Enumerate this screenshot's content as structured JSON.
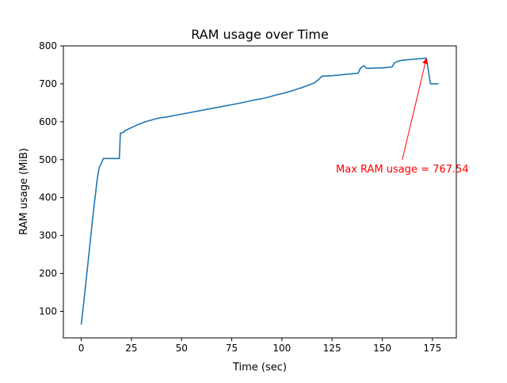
{
  "chart_data": {
    "type": "line",
    "title": "RAM usage over Time",
    "xlabel": "Time (sec)",
    "ylabel": "RAM usage (MiB)",
    "xlim": [
      -8.9,
      186.9
    ],
    "ylim": [
      30,
      800
    ],
    "xticks": [
      0,
      25,
      50,
      75,
      100,
      125,
      150,
      175
    ],
    "yticks": [
      100,
      200,
      300,
      400,
      500,
      600,
      700,
      800
    ],
    "grid": false,
    "line_color": "#1f77b4",
    "annotation_color": "#ff0000",
    "annotation": {
      "text": "Max RAM usage = 767.54",
      "point": [
        172,
        767.54
      ],
      "text_anchor_point": [
        160,
        500
      ]
    },
    "series": [
      {
        "x": [
          0,
          2,
          4,
          6,
          8,
          9,
          10,
          11,
          12,
          19,
          19.5,
          20,
          21,
          22,
          24,
          26,
          28,
          30,
          32,
          34,
          36,
          38,
          40,
          42,
          50,
          60,
          70,
          80,
          85,
          86,
          88,
          90,
          92,
          94,
          96,
          98,
          100,
          102,
          104,
          106,
          108,
          110,
          112,
          114,
          116,
          118,
          120,
          124,
          128,
          132,
          136,
          138,
          139,
          140,
          141,
          142,
          144,
          148,
          150,
          152,
          154,
          155,
          156,
          158,
          160,
          162,
          164,
          166,
          168,
          170,
          172,
          174,
          176,
          178
        ],
        "y": [
          65,
          160,
          260,
          360,
          450,
          480,
          490,
          503,
          503,
          503,
          570,
          570,
          572,
          577,
          582,
          587,
          592,
          596,
          600,
          603,
          606,
          609,
          611,
          612,
          620,
          630,
          640,
          650,
          656,
          657,
          659,
          661,
          663,
          666,
          669,
          672,
          674,
          677,
          680,
          683,
          687,
          690,
          694,
          698,
          702,
          710,
          720,
          721,
          723,
          725,
          727,
          728,
          740,
          745,
          748,
          741,
          741,
          742,
          742,
          743,
          744,
          745,
          755,
          760,
          762,
          763,
          764,
          765,
          766,
          767,
          767.54,
          700,
          700,
          700
        ]
      }
    ]
  }
}
